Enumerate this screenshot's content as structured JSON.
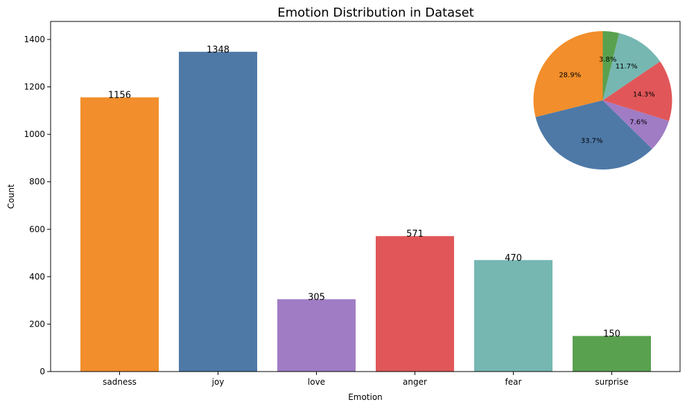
{
  "chart_data": [
    {
      "type": "bar",
      "title": "Emotion Distribution in Dataset",
      "xlabel": "Emotion",
      "ylabel": "Count",
      "categories": [
        "sadness",
        "joy",
        "love",
        "anger",
        "fear",
        "surprise"
      ],
      "values": [
        1156,
        1348,
        305,
        571,
        470,
        150
      ],
      "value_labels": [
        "1156",
        "1348",
        "305",
        "571",
        "470",
        "150"
      ],
      "colors": [
        "#F28E2B",
        "#4E79A7",
        "#A07CC5",
        "#E15759",
        "#76B7B2",
        "#59A14F"
      ],
      "ylim": [
        0,
        1400
      ],
      "yticks": [
        0,
        200,
        400,
        600,
        800,
        1000,
        1200,
        1400
      ],
      "ytick_labels": [
        "0",
        "200",
        "400",
        "600",
        "800",
        "1000",
        "1200",
        "1400"
      ],
      "grid": false
    },
    {
      "type": "pie",
      "placement": "inset top-right",
      "categories": [
        "sadness",
        "joy",
        "love",
        "anger",
        "fear",
        "surprise"
      ],
      "values": [
        28.9,
        33.7,
        7.6,
        14.3,
        11.7,
        3.8
      ],
      "labels": [
        "28.9%",
        "33.7%",
        "7.6%",
        "14.3%",
        "11.7%",
        "3.8%"
      ],
      "colors": [
        "#F28E2B",
        "#4E79A7",
        "#A07CC5",
        "#E15759",
        "#76B7B2",
        "#59A14F"
      ],
      "start_angle_deg": 90,
      "direction": "counterclockwise"
    }
  ]
}
